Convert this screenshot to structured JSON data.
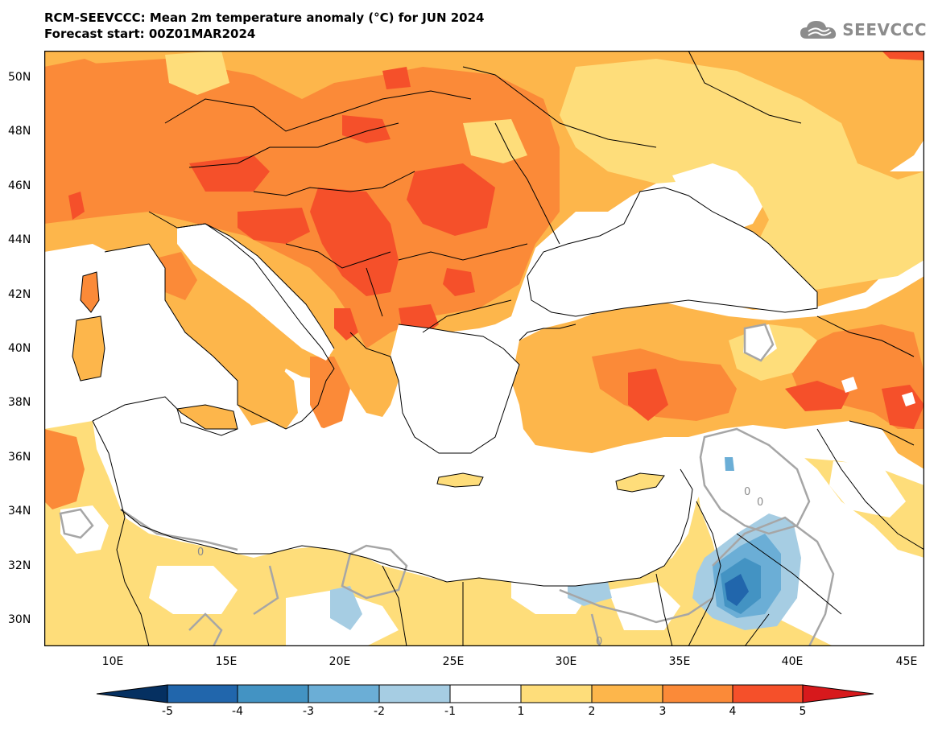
{
  "title": {
    "line1": "RCM-SEEVCCC: Mean 2m temperature anomaly (°C) for JUN 2024",
    "line2": "Forecast start: 00Z01MAR2024"
  },
  "brand": {
    "name": "SEEVCCC",
    "icon": "cloud-logo-icon",
    "color": "#8c8c8c"
  },
  "map": {
    "projection": "lat-lon",
    "lon_range": [
      7,
      45.8
    ],
    "lat_range": [
      29,
      51
    ],
    "lat_ticks": [
      "50N",
      "48N",
      "46N",
      "44N",
      "42N",
      "40N",
      "38N",
      "36N",
      "34N",
      "32N",
      "30N"
    ],
    "lon_ticks": [
      "10E",
      "15E",
      "20E",
      "25E",
      "30E",
      "35E",
      "40E",
      "45E"
    ],
    "contour_label": "0",
    "colors": {
      "sea": "#ffffff",
      "minus5": "#053061",
      "minus4": "#2166ac",
      "minus3": "#4393c3",
      "minus2": "#6baed6",
      "minus1": "#a6cde3",
      "zero": "#ffffff",
      "plus1": "#fedd7a",
      "plus2": "#fdb64b",
      "plus3": "#fb8a38",
      "plus4": "#f5502a",
      "plus5": "#d7191c",
      "contour": "#a6a6a6"
    }
  },
  "colorbar": {
    "labels": [
      "-5",
      "-4",
      "-3",
      "-2",
      "-1",
      "1",
      "2",
      "3",
      "4",
      "5"
    ],
    "colors": [
      "#053061",
      "#2166ac",
      "#4393c3",
      "#6baed6",
      "#a6cde3",
      "#ffffff",
      "#fedd7a",
      "#fdb64b",
      "#fb8a38",
      "#f5502a",
      "#d7191c"
    ]
  }
}
